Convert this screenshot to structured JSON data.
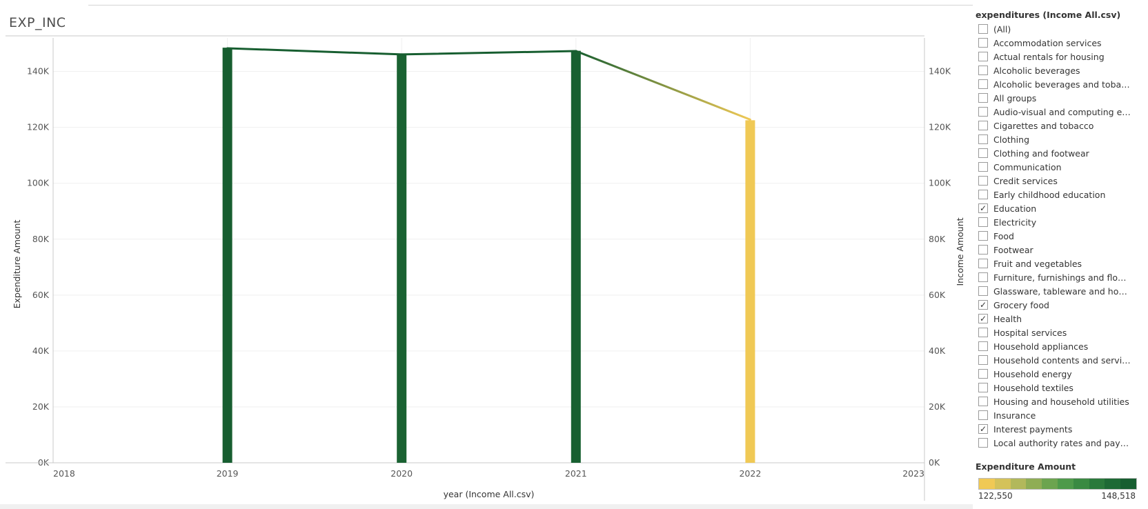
{
  "sheet": {
    "title": "EXP_INC"
  },
  "filter": {
    "title": "expenditures (Income All.csv)",
    "items": [
      {
        "label": "(All)",
        "checked": false
      },
      {
        "label": "Accommodation services",
        "checked": false
      },
      {
        "label": "Actual rentals for housing",
        "checked": false
      },
      {
        "label": "Alcoholic beverages",
        "checked": false
      },
      {
        "label": "Alcoholic beverages and tobacco",
        "checked": false
      },
      {
        "label": "All groups",
        "checked": false
      },
      {
        "label": "Audio-visual and computing equi...",
        "checked": false
      },
      {
        "label": "Cigarettes and tobacco",
        "checked": false
      },
      {
        "label": "Clothing",
        "checked": false
      },
      {
        "label": "Clothing and footwear",
        "checked": false
      },
      {
        "label": "Communication",
        "checked": false
      },
      {
        "label": "Credit services",
        "checked": false
      },
      {
        "label": "Early childhood education",
        "checked": false
      },
      {
        "label": "Education",
        "checked": true
      },
      {
        "label": "Electricity",
        "checked": false
      },
      {
        "label": "Food",
        "checked": false
      },
      {
        "label": "Footwear",
        "checked": false
      },
      {
        "label": "Fruit and vegetables",
        "checked": false
      },
      {
        "label": "Furniture, furnishings and floor ...",
        "checked": false
      },
      {
        "label": "Glassware, tableware and house...",
        "checked": false
      },
      {
        "label": "Grocery food",
        "checked": true
      },
      {
        "label": "Health",
        "checked": true
      },
      {
        "label": "Hospital services",
        "checked": false
      },
      {
        "label": "Household appliances",
        "checked": false
      },
      {
        "label": "Household contents and services",
        "checked": false
      },
      {
        "label": "Household energy",
        "checked": false
      },
      {
        "label": "Household textiles",
        "checked": false
      },
      {
        "label": "Housing and household utilities",
        "checked": false
      },
      {
        "label": "Insurance",
        "checked": false
      },
      {
        "label": "Interest payments",
        "checked": true
      },
      {
        "label": "Local authority rates and payme...",
        "checked": false
      }
    ]
  },
  "legend": {
    "title": "Expenditure Amount",
    "min_label": "122,550",
    "max_label": "148,518",
    "colors": [
      "#f0c955",
      "#d4c25a",
      "#b2b85b",
      "#8fad55",
      "#6ca44f",
      "#4e9a4a",
      "#3a8a42",
      "#2a793b",
      "#1e6a35",
      "#175e30"
    ]
  },
  "chart_data": {
    "type": "bar",
    "x": [
      2019,
      2020,
      2021,
      2022
    ],
    "xlim": [
      2018,
      2023
    ],
    "x_ticks": [
      "2018",
      "2019",
      "2020",
      "2021",
      "2022",
      "2023"
    ],
    "xlabel": "year (Income All.csv)",
    "ylabel": "Expenditure Amount",
    "ylim": [
      0,
      152000
    ],
    "y_ticks": [
      "0K",
      "20K",
      "40K",
      "60K",
      "80K",
      "100K",
      "120K",
      "140K"
    ],
    "y2label": "Income Amount",
    "y2lim": [
      0,
      152000
    ],
    "y2_ticks": [
      "0K",
      "20K",
      "40K",
      "60K",
      "80K",
      "100K",
      "120K",
      "140K"
    ],
    "grid": true,
    "series": [
      {
        "axis": "left",
        "mark": "bar",
        "values": [
          148518,
          146300,
          147400,
          122550
        ],
        "colors": [
          "#175e30",
          "#1a6232",
          "#186031",
          "#f0c955"
        ]
      },
      {
        "axis": "right",
        "mark": "line",
        "values": [
          148300,
          146100,
          147300,
          122800
        ]
      }
    ]
  }
}
